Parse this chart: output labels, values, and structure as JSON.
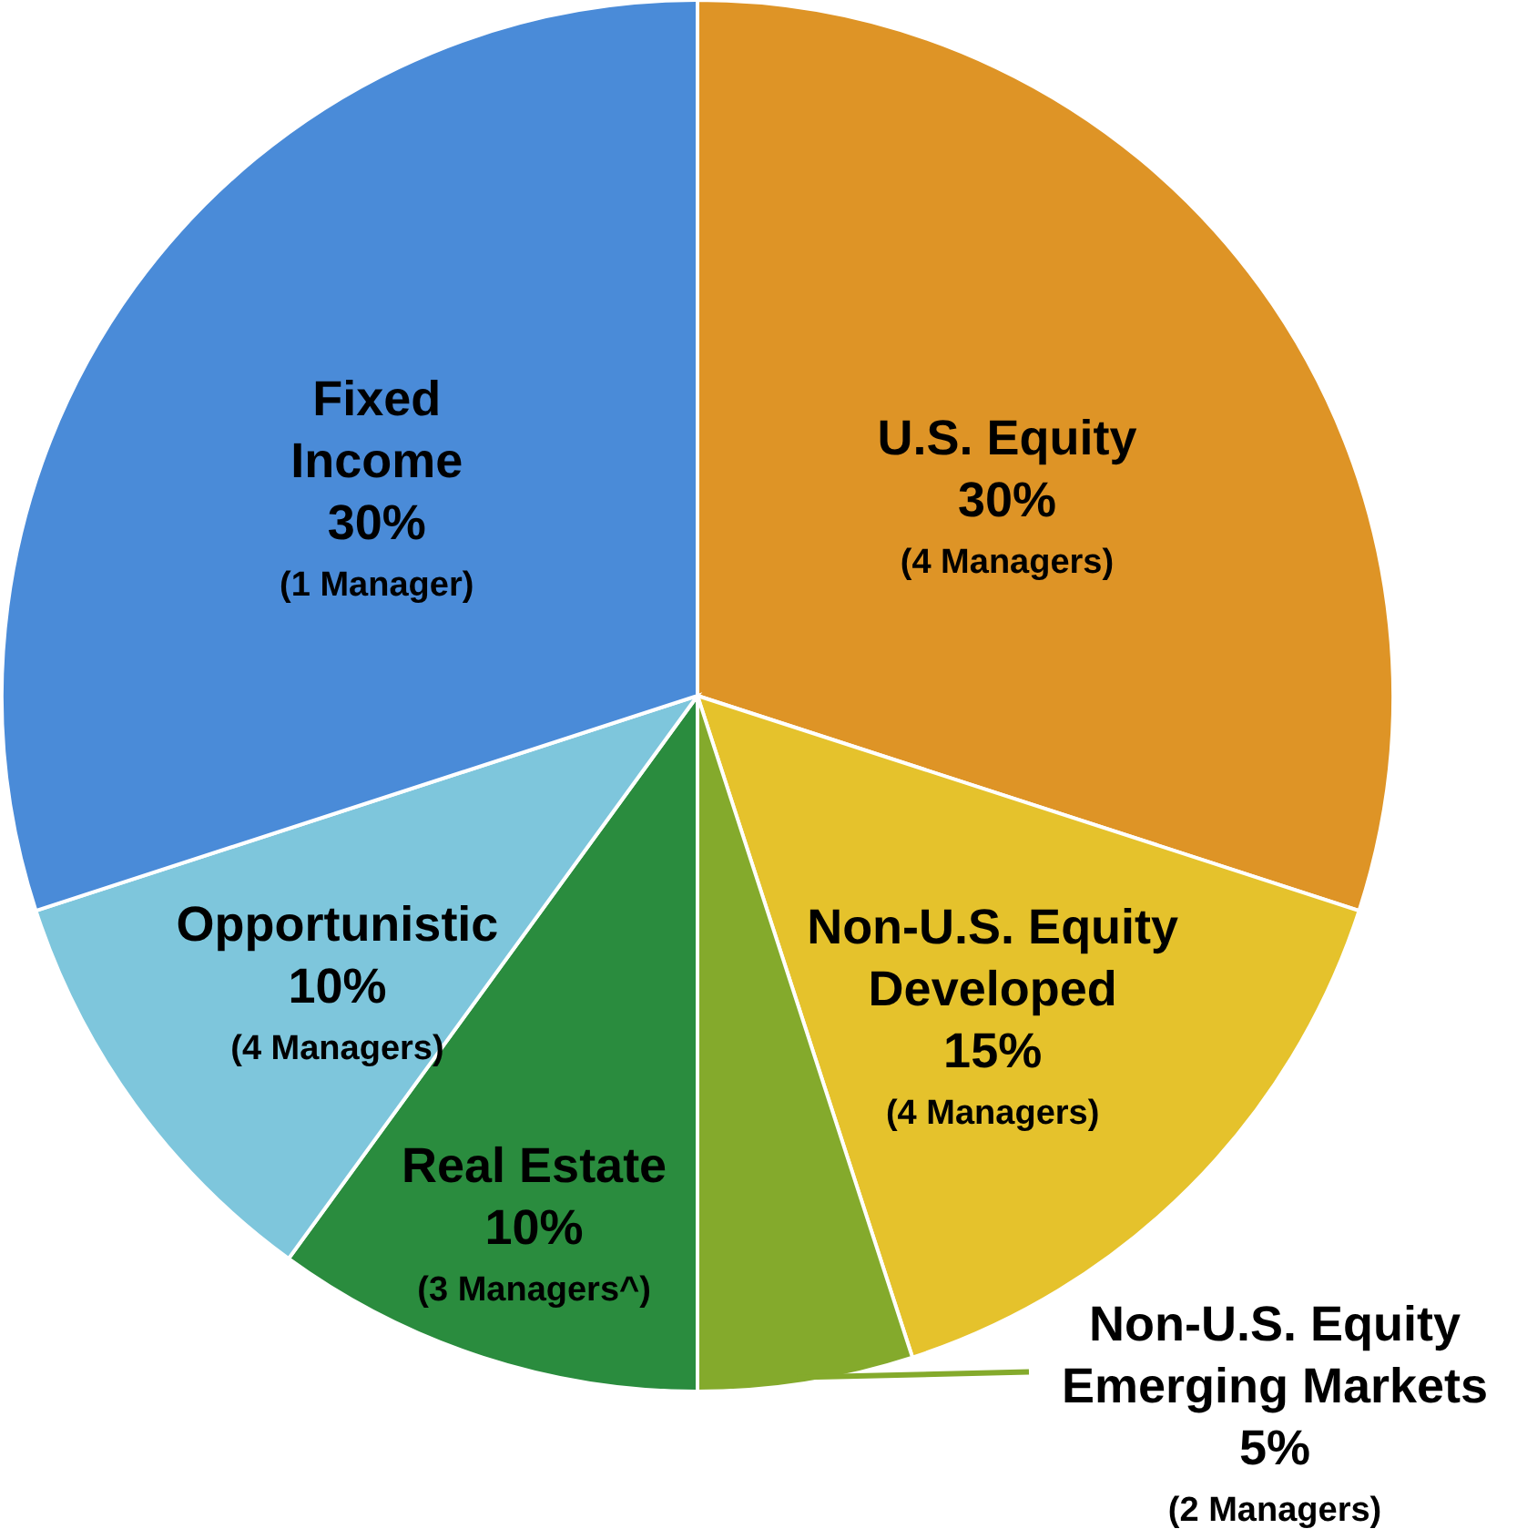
{
  "chart_data": {
    "type": "pie",
    "categories": [
      "U.S. Equity",
      "Non-U.S. Equity Developed",
      "Non-U.S. Equity Emerging Markets",
      "Real Estate",
      "Opportunistic",
      "Fixed Income"
    ],
    "values": [
      30,
      15,
      5,
      10,
      10,
      30
    ],
    "colors": [
      "#de9426",
      "#e5c22c",
      "#84aa2c",
      "#2a8c3e",
      "#7ec6dc",
      "#4a8bd8"
    ],
    "value_labels": [
      "30%",
      "15%",
      "5%",
      "10%",
      "10%",
      "30%"
    ],
    "annotations": [
      "(4 Managers)",
      "(4 Managers)",
      "(2 Managers)",
      "(3 Managers^)",
      "(4 Managers)",
      "(1 Manager)"
    ]
  }
}
